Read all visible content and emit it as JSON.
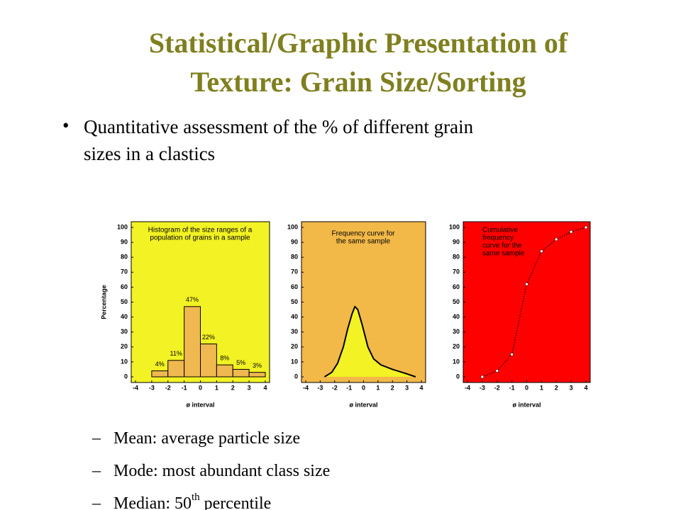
{
  "slide": {
    "title": [
      "Statistical/Graphic Presentation of",
      "Texture: Grain Size/Sorting"
    ],
    "bullet": [
      "Quantitative assessment of the % of different grain",
      "sizes in a clastics"
    ],
    "sub_bullets": [
      {
        "text": "Mean: average particle size"
      },
      {
        "text": "Mode: most abundant class size"
      },
      {
        "text": "Median: 50",
        "sup": "th",
        "after": " percentile"
      }
    ]
  },
  "chart_data": [
    {
      "type": "histogram",
      "title": [
        "Histogram of the size ranges of a",
        "population of grains in a sample"
      ],
      "ylabel": "Percentage",
      "xlabel": "ø interval",
      "bins": [
        -3,
        -2,
        -1,
        0,
        1,
        2,
        3,
        4
      ],
      "values": [
        4,
        11,
        47,
        22,
        8,
        5,
        3
      ],
      "value_labels": [
        "4%",
        "11%",
        "47%",
        "22%",
        "8%",
        "5%",
        "3%"
      ],
      "xlim": [
        -4,
        4
      ],
      "xticks": [
        -4,
        -3,
        -2,
        -1,
        0,
        1,
        2,
        3,
        4
      ],
      "ylim": [
        0,
        100
      ],
      "yticks": [
        0,
        10,
        20,
        30,
        40,
        50,
        60,
        70,
        80,
        90,
        100
      ],
      "background": "#f2f224",
      "color": "#f0b850"
    },
    {
      "type": "line",
      "title": [
        "Frequency curve for",
        "the same sample"
      ],
      "xlabel": "ø interval",
      "x": [
        -2.7,
        -2.2,
        -1.8,
        -1.4,
        -1.1,
        -0.8,
        -0.6,
        -0.4,
        -0.1,
        0.3,
        0.7,
        1.2,
        2,
        3,
        3.6
      ],
      "values": [
        0,
        3,
        9,
        20,
        32,
        42,
        47,
        45,
        35,
        20,
        12,
        8,
        5,
        2,
        0
      ],
      "xlim": [
        -4,
        4
      ],
      "xticks": [
        -4,
        -3,
        -2,
        -1,
        0,
        1,
        2,
        3,
        4
      ],
      "ylim": [
        0,
        100
      ],
      "yticks": [
        0,
        10,
        20,
        30,
        40,
        50,
        60,
        70,
        80,
        90,
        100
      ],
      "background": "#f2b848",
      "fill": "#f2f224",
      "color": "#000000"
    },
    {
      "type": "line",
      "title": [
        "Cumulative",
        "frequency",
        "curve for the",
        "same sample"
      ],
      "xlabel": "ø interval",
      "x": [
        -3,
        -2,
        -1,
        0,
        1,
        2,
        3,
        4
      ],
      "values": [
        0,
        4,
        15,
        62,
        84,
        92,
        97,
        100
      ],
      "markers": true,
      "dotted": true,
      "xlim": [
        -4,
        4
      ],
      "xticks": [
        -4,
        -3,
        -2,
        -1,
        0,
        1,
        2,
        3,
        4
      ],
      "ylim": [
        0,
        100
      ],
      "yticks": [
        0,
        10,
        20,
        30,
        40,
        50,
        60,
        70,
        80,
        90,
        100
      ],
      "background": "#ff0000",
      "color": "#000000"
    }
  ]
}
